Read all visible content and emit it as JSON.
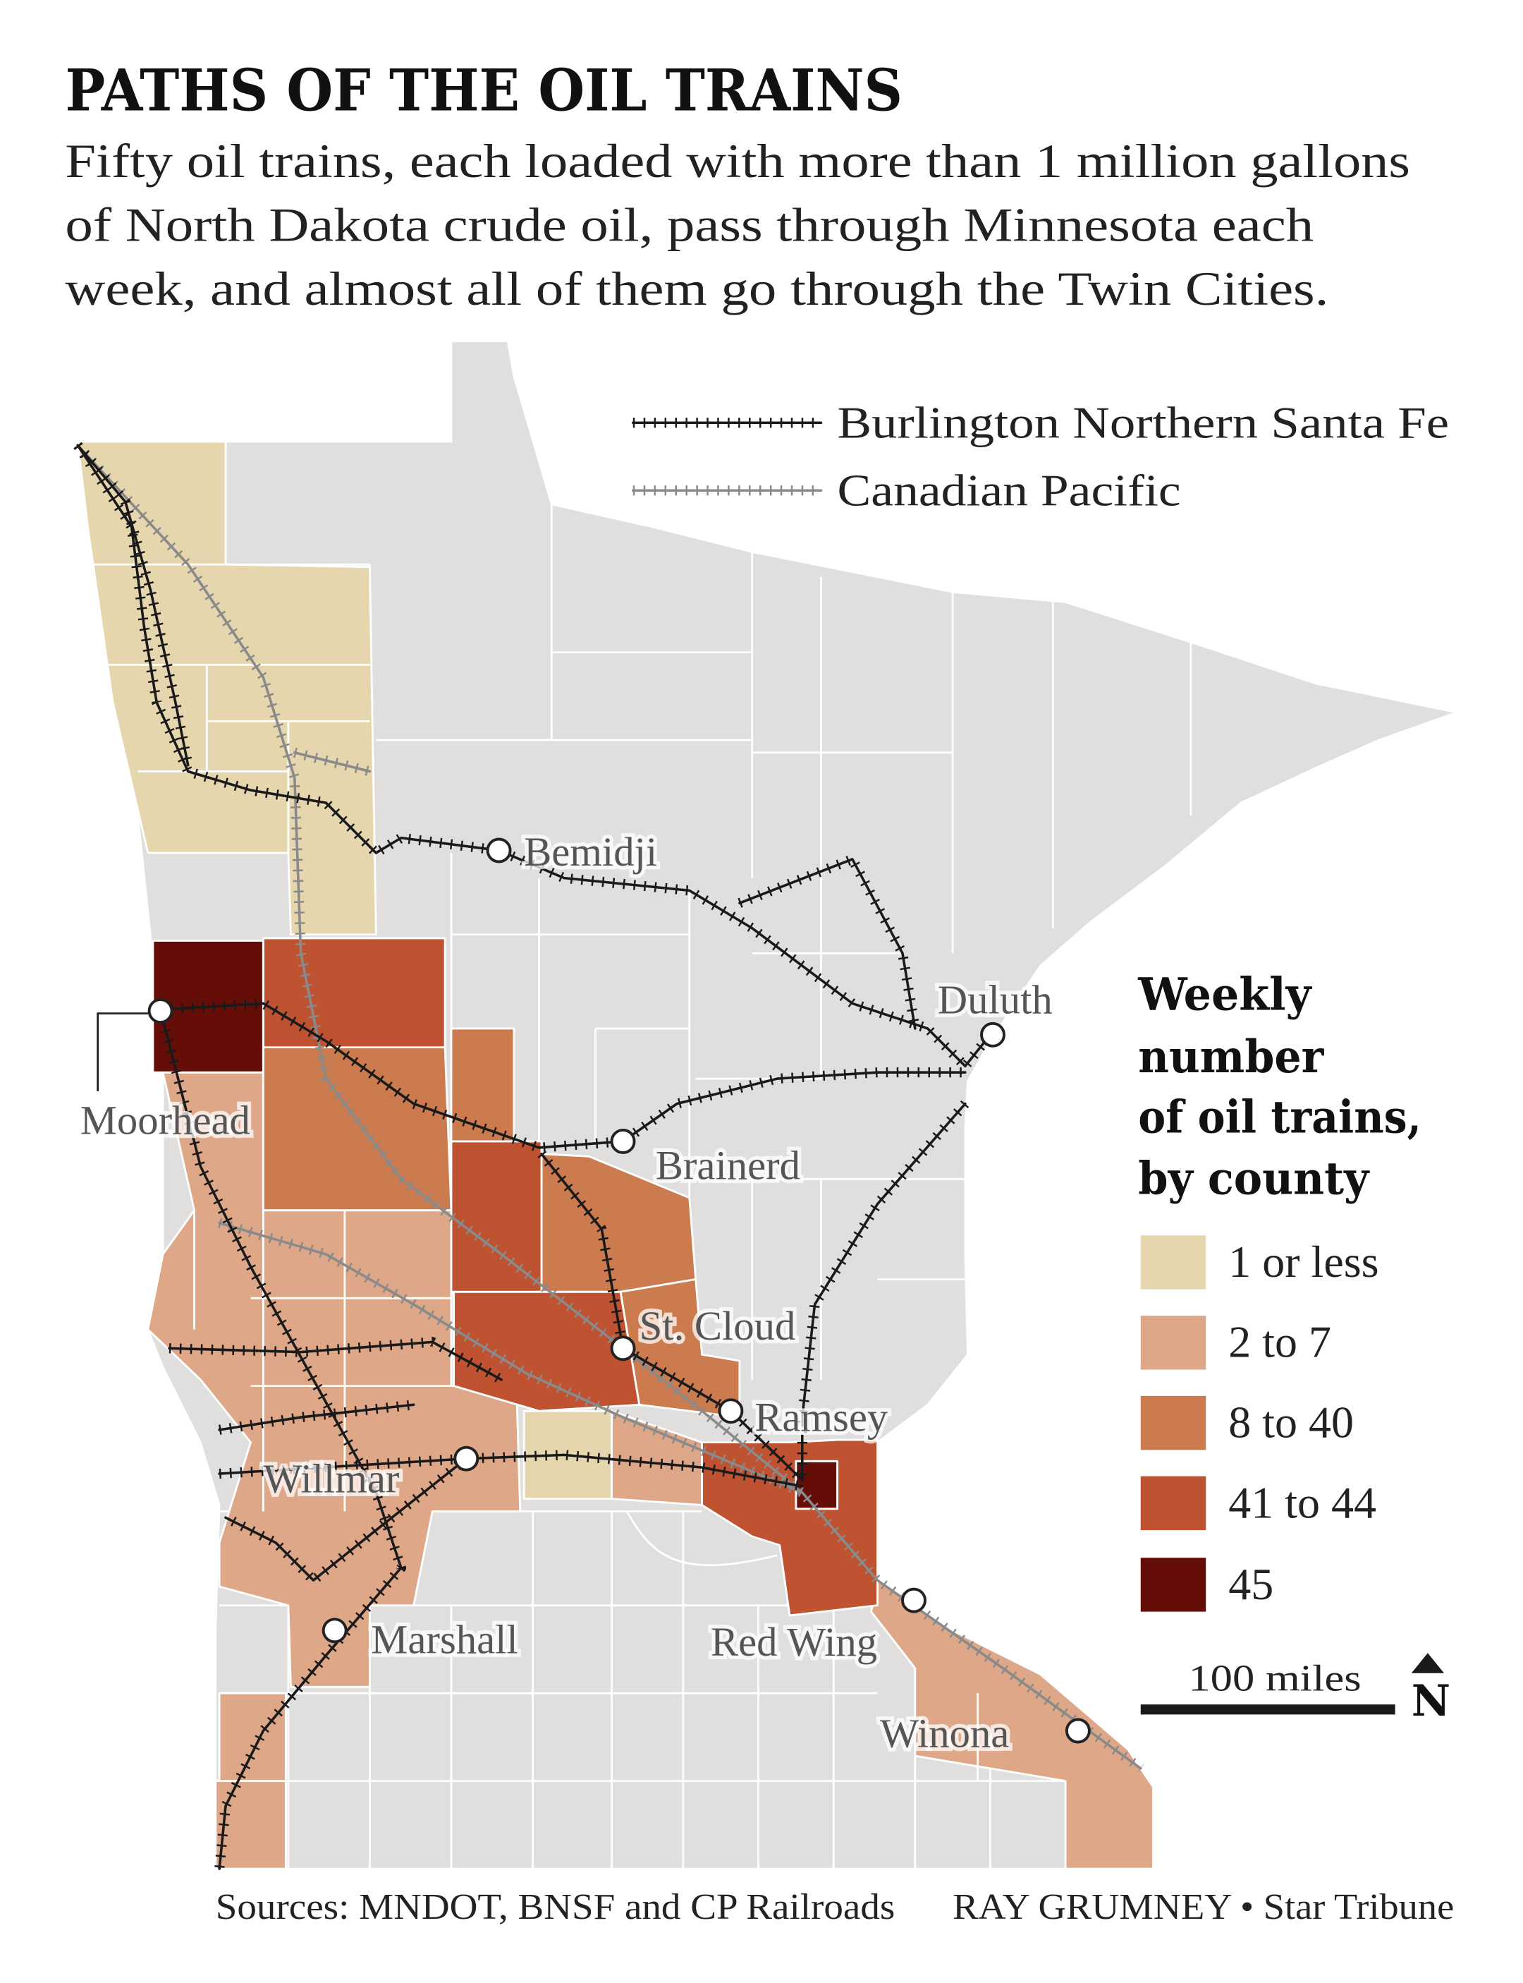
{
  "title": "PATHS OF THE OIL TRAINS",
  "subtitle_lines": [
    "Fifty oil trains, each loaded with more than 1 million gallons",
    "of North Dakota crude oil, pass through Minnesota each",
    "week, and almost all of them go through the Twin Cities."
  ],
  "rail_legend": [
    {
      "name": "Burlington Northern Santa Fe",
      "color": "#1a1a1a"
    },
    {
      "name": "Canadian Pacific",
      "color": "#8a8a8a"
    }
  ],
  "legend": {
    "title_lines": [
      "Weekly",
      "number",
      "of oil trains,",
      "by county"
    ],
    "bins": [
      {
        "label": "1 or less",
        "color": "#e6d6ae"
      },
      {
        "label": "2 to 7",
        "color": "#dea787"
      },
      {
        "label": "8 to 40",
        "color": "#cc7b4e"
      },
      {
        "label": "41 to 44",
        "color": "#bf5230"
      },
      {
        "label": "45",
        "color": "#650d07"
      }
    ],
    "no_data_color": "#e1dfdd"
  },
  "scale_label": "100 miles",
  "north_label": "N",
  "cities": [
    "Bemidji",
    "Duluth",
    "Moorhead",
    "Brainerd",
    "St. Cloud",
    "Ramsey",
    "Willmar",
    "Marshall",
    "Red Wing",
    "Winona"
  ],
  "footer": {
    "sources": "Sources: MNDOT, BNSF and CP Railroads",
    "credit": "RAY GRUMNEY • Star Tribune"
  }
}
